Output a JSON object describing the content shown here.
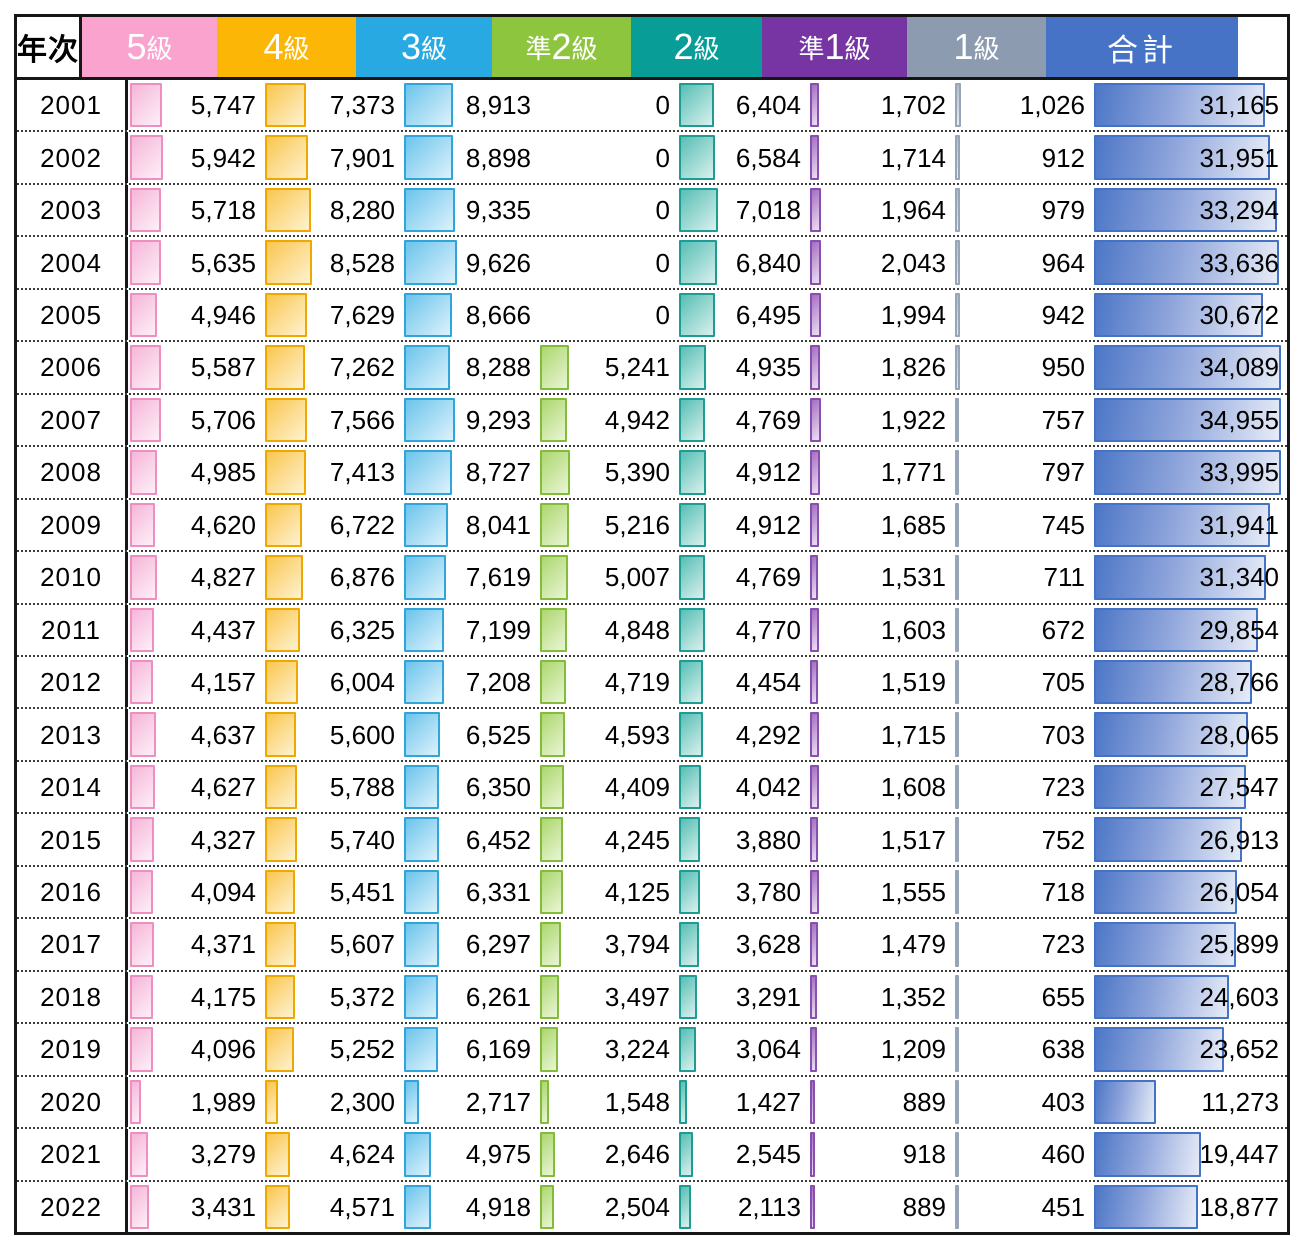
{
  "table": {
    "row_header": "年次",
    "columns": [
      {
        "id": "grade5",
        "label": "5級",
        "prefix": "",
        "main": "5",
        "suffix": "級",
        "header_bg": "#F9A3CE",
        "bar_border": "#EF8FC1",
        "bar_from": "#F6B6D9",
        "bar_to": "#FDEFF7"
      },
      {
        "id": "grade4",
        "label": "4級",
        "prefix": "",
        "main": "4",
        "suffix": "級",
        "header_bg": "#FBB606",
        "bar_border": "#EFA800",
        "bar_from": "#FAC64F",
        "bar_to": "#FEF2D0"
      },
      {
        "id": "grade3",
        "label": "3級",
        "prefix": "",
        "main": "3",
        "suffix": "級",
        "header_bg": "#29A9E1",
        "bar_border": "#2FA5DA",
        "bar_from": "#6CC4EC",
        "bar_to": "#DCF2FB"
      },
      {
        "id": "pre2",
        "label": "準2級",
        "prefix": "準",
        "main": "2",
        "suffix": "級",
        "header_bg": "#8EC53F",
        "bar_border": "#83BC3B",
        "bar_from": "#ACD76F",
        "bar_to": "#E9F5D4"
      },
      {
        "id": "grade2",
        "label": "2級",
        "prefix": "",
        "main": "2",
        "suffix": "級",
        "header_bg": "#089E97",
        "bar_border": "#1D9C94",
        "bar_from": "#57BFB5",
        "bar_to": "#D9F0ED"
      },
      {
        "id": "pre1",
        "label": "準1級",
        "prefix": "準",
        "main": "1",
        "suffix": "級",
        "header_bg": "#7734A3",
        "bar_border": "#8A4FAE",
        "bar_from": "#A56FC2",
        "bar_to": "#EBDFF3"
      },
      {
        "id": "grade1",
        "label": "1級",
        "prefix": "",
        "main": "1",
        "suffix": "級",
        "header_bg": "#8C9BB0",
        "bar_border": "#97A5B9",
        "bar_from": "#AFBBCB",
        "bar_to": "#EAEDF3"
      },
      {
        "id": "total",
        "label": "合計",
        "prefix": "",
        "main": "合計",
        "suffix": "",
        "header_bg": "#4673C5",
        "bar_border": "#4472C4",
        "bar_from": "#4D77C7",
        "bar_to": "#E6EBF7"
      }
    ]
  },
  "chart_data": {
    "type": "table",
    "title": "",
    "row_header_label": "年次",
    "value_format": "thousands-comma",
    "bar_style": "gradient-data-bars, shared linear scale across all columns, zero means no bar",
    "categories": [
      "2001",
      "2002",
      "2003",
      "2004",
      "2005",
      "2006",
      "2007",
      "2008",
      "2009",
      "2010",
      "2011",
      "2012",
      "2013",
      "2014",
      "2015",
      "2016",
      "2017",
      "2018",
      "2019",
      "2020",
      "2021",
      "2022"
    ],
    "series": [
      {
        "name": "5級",
        "values": [
          5747,
          5942,
          5718,
          5635,
          4946,
          5587,
          5706,
          4985,
          4620,
          4827,
          4437,
          4157,
          4637,
          4627,
          4327,
          4094,
          4371,
          4175,
          4096,
          1989,
          3279,
          3431
        ]
      },
      {
        "name": "4級",
        "values": [
          7373,
          7901,
          8280,
          8528,
          7629,
          7262,
          7566,
          7413,
          6722,
          6876,
          6325,
          6004,
          5600,
          5788,
          5740,
          5451,
          5607,
          5372,
          5252,
          2300,
          4624,
          4571
        ]
      },
      {
        "name": "3級",
        "values": [
          8913,
          8898,
          9335,
          9626,
          8666,
          8288,
          9293,
          8727,
          8041,
          7619,
          7199,
          7208,
          6525,
          6350,
          6452,
          6331,
          6297,
          6261,
          6169,
          2717,
          4975,
          4918
        ]
      },
      {
        "name": "準2級",
        "values": [
          0,
          0,
          0,
          0,
          0,
          5241,
          4942,
          5390,
          5216,
          5007,
          4848,
          4719,
          4593,
          4409,
          4245,
          4125,
          3794,
          3497,
          3224,
          1548,
          2646,
          2504
        ]
      },
      {
        "name": "2級",
        "values": [
          6404,
          6584,
          7018,
          6840,
          6495,
          4935,
          4769,
          4912,
          4912,
          4769,
          4770,
          4454,
          4292,
          4042,
          3880,
          3780,
          3628,
          3291,
          3064,
          1427,
          2545,
          2113
        ]
      },
      {
        "name": "準1級",
        "values": [
          1702,
          1714,
          1964,
          2043,
          1994,
          1826,
          1922,
          1771,
          1685,
          1531,
          1603,
          1519,
          1715,
          1608,
          1517,
          1555,
          1479,
          1352,
          1209,
          889,
          918,
          889
        ]
      },
      {
        "name": "1級",
        "values": [
          1026,
          912,
          979,
          964,
          942,
          950,
          757,
          797,
          745,
          711,
          672,
          705,
          703,
          723,
          752,
          718,
          723,
          655,
          638,
          403,
          460,
          451
        ]
      },
      {
        "name": "合計",
        "values": [
          31165,
          31951,
          33294,
          33636,
          30672,
          34089,
          34955,
          33995,
          31941,
          31340,
          29854,
          28766,
          28065,
          27547,
          26913,
          26054,
          25899,
          24603,
          23652,
          11273,
          19447,
          18877
        ]
      }
    ]
  }
}
